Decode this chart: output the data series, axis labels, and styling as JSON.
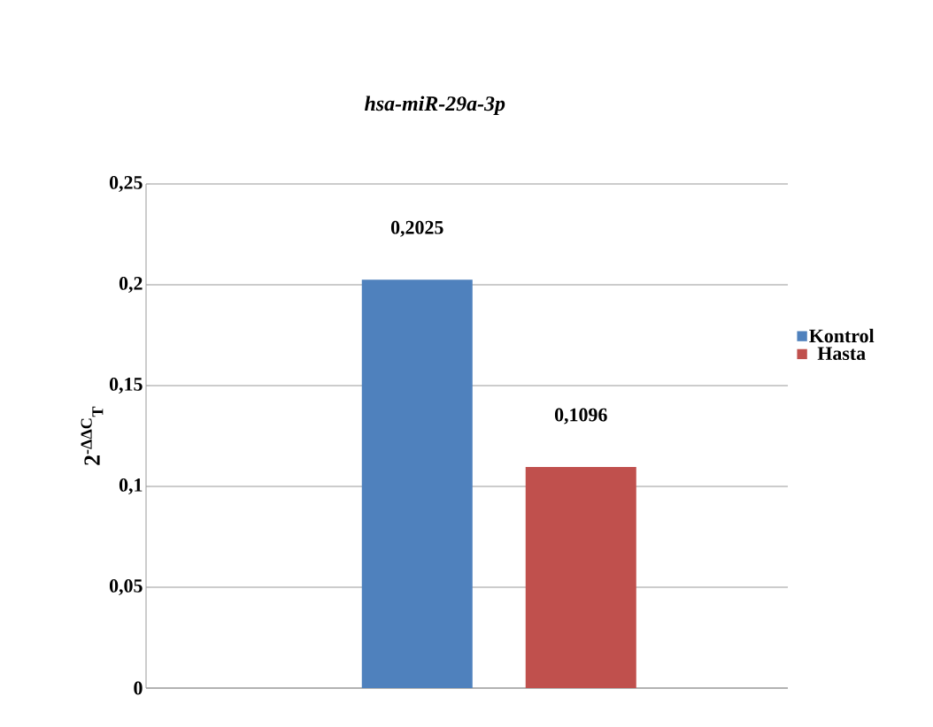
{
  "chart_data": {
    "type": "bar",
    "title": "hsa-miR-29a-3p",
    "ylabel": "2$^{-ΔΔC}$$_{T}$",
    "categories": [
      null
    ],
    "series": [
      {
        "name": "Kontrol",
        "color": "#4f81bd",
        "values": [
          0.2025
        ],
        "value_labels": [
          "0,2025"
        ]
      },
      {
        "name": "Hasta",
        "color": "#c0504d",
        "values": [
          0.1096
        ],
        "value_labels": [
          "0,1096"
        ]
      }
    ],
    "ylim": [
      0,
      0.25
    ],
    "yticks": [
      0,
      {
        "value": 0.05,
        "label": "0,05"
      },
      {
        "value": 0.1,
        "label": "0,1"
      },
      {
        "value": 0.15,
        "label": "0,15"
      },
      {
        "value": 0.2,
        "label": "0,2"
      },
      {
        "value": 0.25,
        "label": "0,25"
      }
    ],
    "grid": "y",
    "legend": "right"
  }
}
